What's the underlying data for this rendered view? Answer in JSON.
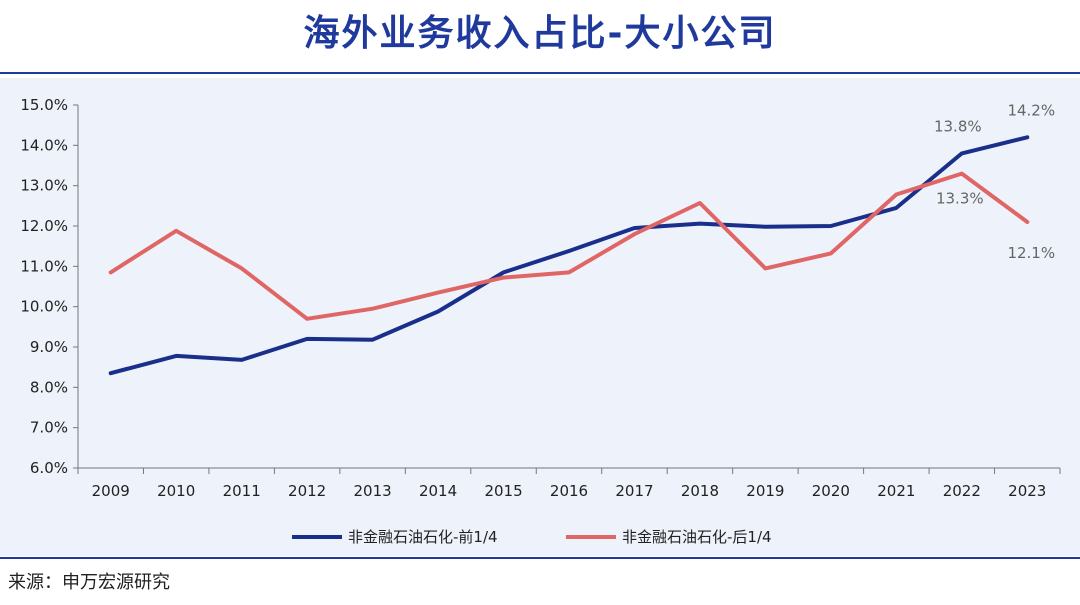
{
  "title": "海外业务收入占比-大小公司",
  "source": "来源：申万宏源研究",
  "chart_data": {
    "type": "line",
    "title": "海外业务收入占比-大小公司",
    "xlabel": "",
    "ylabel": "",
    "categories": [
      "2009",
      "2010",
      "2011",
      "2012",
      "2013",
      "2014",
      "2015",
      "2016",
      "2017",
      "2018",
      "2019",
      "2020",
      "2021",
      "2022",
      "2023"
    ],
    "ylim": [
      6.0,
      15.0
    ],
    "yticks": [
      "6.0%",
      "7.0%",
      "8.0%",
      "9.0%",
      "10.0%",
      "11.0%",
      "12.0%",
      "13.0%",
      "14.0%",
      "15.0%"
    ],
    "series": [
      {
        "name": "非金融石油石化-前1/4",
        "color": "#1a2f8a",
        "values": [
          8.35,
          8.78,
          8.68,
          9.2,
          9.18,
          9.88,
          10.85,
          11.38,
          11.95,
          12.06,
          11.98,
          12.0,
          12.45,
          13.8,
          14.2
        ]
      },
      {
        "name": "非金融石油石化-后1/4",
        "color": "#e06666",
        "values": [
          10.85,
          11.88,
          10.95,
          9.7,
          9.95,
          10.35,
          10.72,
          10.85,
          11.8,
          12.57,
          10.95,
          11.32,
          12.78,
          13.3,
          12.1
        ]
      }
    ],
    "data_labels": [
      {
        "series": 0,
        "index": 13,
        "text": "13.8%"
      },
      {
        "series": 0,
        "index": 14,
        "text": "14.2%"
      },
      {
        "series": 1,
        "index": 13,
        "text": "13.3%"
      },
      {
        "series": 1,
        "index": 14,
        "text": "12.1%"
      }
    ]
  }
}
